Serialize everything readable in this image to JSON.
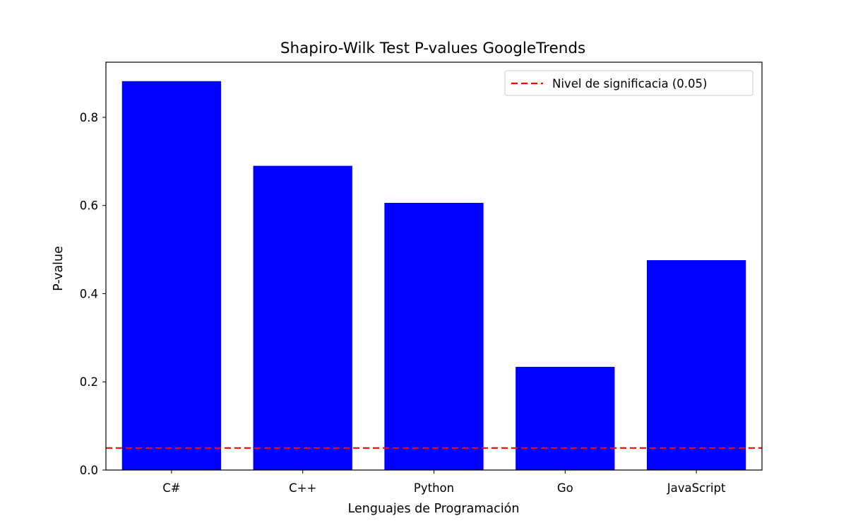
{
  "chart_data": {
    "type": "bar",
    "title": "Shapiro-Wilk Test P-values GoogleTrends",
    "xlabel": "Lenguajes de Programación",
    "ylabel": "P-value",
    "categories": [
      "C#",
      "C++",
      "Python",
      "Go",
      "JavaScript"
    ],
    "values": [
      0.882,
      0.69,
      0.606,
      0.234,
      0.476
    ],
    "bar_color": "#0000ff",
    "ylim": [
      0,
      0.925
    ],
    "yticks": [
      0.0,
      0.2,
      0.4,
      0.6,
      0.8
    ],
    "ytick_labels": [
      "0.0",
      "0.2",
      "0.4",
      "0.6",
      "0.8"
    ],
    "reference_line": {
      "value": 0.05,
      "label": "Nivel de significacia (0.05)",
      "color": "#ff0000",
      "style": "dashed"
    },
    "legend_position": "top-right",
    "grid": false
  }
}
